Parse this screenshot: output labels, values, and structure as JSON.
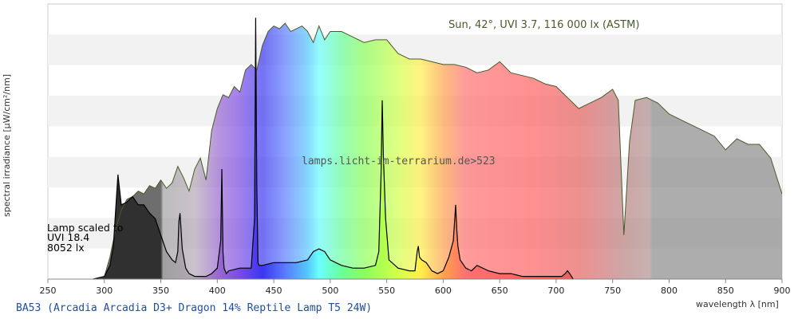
{
  "chart_data": {
    "type": "area",
    "xlabel": "wavelength λ [nm]",
    "ylabel": "spectral irradiance [µW/cm²/nm]",
    "xlim": [
      250,
      900
    ],
    "ylim": [
      0,
      100
    ],
    "x_ticks": [
      250,
      300,
      350,
      400,
      450,
      500,
      550,
      600,
      650,
      700,
      750,
      800,
      850,
      900
    ],
    "y_ticks_shown": false,
    "grid": "horizontal bands",
    "legend": "none",
    "annotations": {
      "sun": "Sun, 42°, UVI 3.7, 116 000 lx (ASTM)",
      "lamp_line1": "Lamp scaled to",
      "lamp_line2": "UVI 18.4",
      "lamp_line3": "8052 lx",
      "watermark": "lamps.licht-im-terrarium.de>523"
    },
    "footer_title": "BA53 (Arcadia Arcadia D3+ Dragon 14% Reptile Lamp T5 24W)",
    "series": [
      {
        "name": "Sun, 42°, UVI 3.7, 116 000 lx (ASTM)",
        "x": [
          290,
          295,
          300,
          305,
          310,
          315,
          320,
          325,
          330,
          335,
          340,
          345,
          350,
          355,
          360,
          365,
          370,
          375,
          380,
          385,
          390,
          395,
          400,
          405,
          410,
          415,
          420,
          425,
          430,
          435,
          440,
          445,
          450,
          455,
          460,
          465,
          470,
          475,
          480,
          485,
          490,
          495,
          500,
          510,
          520,
          530,
          540,
          550,
          560,
          570,
          580,
          590,
          600,
          610,
          620,
          630,
          640,
          650,
          660,
          670,
          680,
          690,
          700,
          710,
          720,
          730,
          740,
          750,
          755,
          760,
          765,
          770,
          780,
          790,
          800,
          810,
          820,
          830,
          840,
          850,
          860,
          870,
          880,
          890,
          900
        ],
        "y": [
          0,
          0,
          1,
          8,
          18,
          25,
          29,
          30,
          32,
          31,
          34,
          33,
          36,
          33,
          35,
          41,
          37,
          32,
          40,
          44,
          36,
          54,
          62,
          67,
          66,
          70,
          68,
          76,
          78,
          76,
          85,
          90,
          92,
          91,
          93,
          90,
          91,
          92,
          90,
          86,
          92,
          87,
          90,
          90,
          88,
          86,
          87,
          87,
          82,
          80,
          80,
          79,
          78,
          78,
          77,
          75,
          76,
          79,
          75,
          74,
          73,
          71,
          70,
          66,
          62,
          64,
          66,
          69,
          65,
          16,
          50,
          65,
          66,
          64,
          60,
          58,
          56,
          54,
          52,
          47,
          51,
          49,
          49,
          44,
          31
        ]
      },
      {
        "name": "Arcadia D3+ Dragon 14% Reptile Lamp T5 24W (scaled)",
        "x": [
          290,
          300,
          305,
          308,
          310,
          312,
          315,
          320,
          325,
          330,
          335,
          340,
          345,
          350,
          355,
          360,
          363,
          365,
          366,
          367,
          369,
          372,
          375,
          380,
          385,
          390,
          395,
          400,
          403,
          404,
          405,
          406,
          408,
          410,
          420,
          430,
          433,
          434,
          435,
          436,
          437,
          440,
          450,
          460,
          470,
          480,
          485,
          490,
          495,
          500,
          510,
          520,
          530,
          540,
          543,
          545,
          546,
          547,
          549,
          552,
          560,
          570,
          575,
          577,
          578,
          579,
          581,
          585,
          590,
          595,
          600,
          605,
          609,
          611,
          612,
          613,
          615,
          620,
          625,
          630,
          640,
          650,
          660,
          670,
          680,
          690,
          700,
          705,
          708,
          710,
          712,
          715
        ],
        "y": [
          0,
          1,
          5,
          12,
          25,
          38,
          27,
          28,
          30,
          27,
          27,
          24,
          22,
          16,
          10,
          7,
          6,
          10,
          21,
          24,
          11,
          4,
          2,
          1,
          1,
          1,
          2,
          4,
          14,
          40,
          10,
          4,
          2,
          3,
          4,
          4,
          22,
          95,
          35,
          6,
          5,
          5,
          6,
          6,
          6,
          7,
          10,
          11,
          10,
          7,
          5,
          4,
          4,
          5,
          10,
          38,
          65,
          45,
          22,
          7,
          4,
          3,
          3,
          10,
          12,
          8,
          7,
          6,
          3,
          2,
          3,
          8,
          14,
          27,
          18,
          12,
          7,
          4,
          3,
          5,
          3,
          2,
          2,
          1,
          1,
          1,
          1,
          1,
          2,
          3,
          2,
          0
        ]
      }
    ]
  }
}
